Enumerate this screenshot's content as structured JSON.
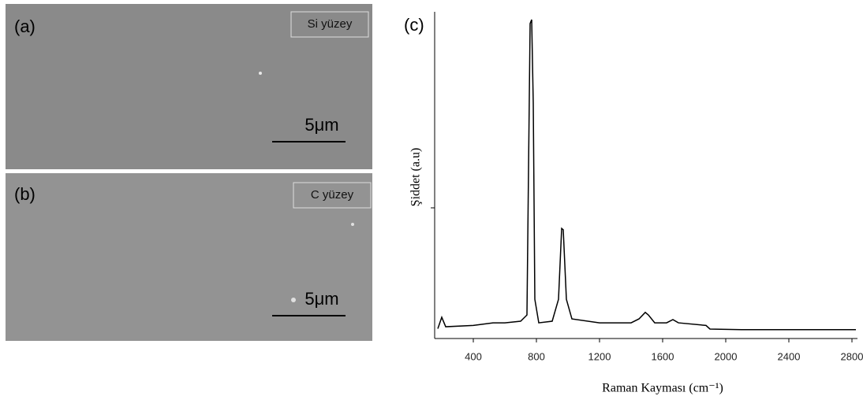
{
  "panels": [
    {
      "label": "(a)",
      "tag": "Si yüzey",
      "scale": "5μm"
    },
    {
      "label": "(b)",
      "tag": "C yüzey",
      "scale": "5μm"
    }
  ],
  "chart_data": {
    "type": "line",
    "panel_label": "(c)",
    "x_label": "Raman Kayması (cm⁻¹)",
    "y_label": "Şiddet (a.u)",
    "x": [
      175,
      200,
      225,
      400,
      525,
      600,
      700,
      740,
      760,
      770,
      780,
      790,
      815,
      900,
      940,
      960,
      970,
      990,
      1025,
      1200,
      1400,
      1450,
      1490,
      1510,
      1550,
      1625,
      1665,
      1700,
      1875,
      1900,
      2100,
      2825
    ],
    "series": [
      {
        "color": "#000000",
        "values": [
          3,
          6.5,
          3.6,
          4,
          4.8,
          4.8,
          5.3,
          7.2,
          96.4,
          97.6,
          72,
          12,
          4.8,
          5.3,
          12,
          33.7,
          33.3,
          12,
          6,
          4.8,
          4.8,
          6,
          8,
          7.2,
          4.8,
          4.8,
          5.8,
          4.8,
          4,
          2.9,
          2.7,
          2.7
        ]
      }
    ],
    "xlim": [
      155,
      2835
    ],
    "xticks": [
      400,
      800,
      1200,
      1600,
      2000,
      2400,
      2800
    ],
    "ylim": [
      0,
      100
    ],
    "yticks": [
      40
    ]
  }
}
